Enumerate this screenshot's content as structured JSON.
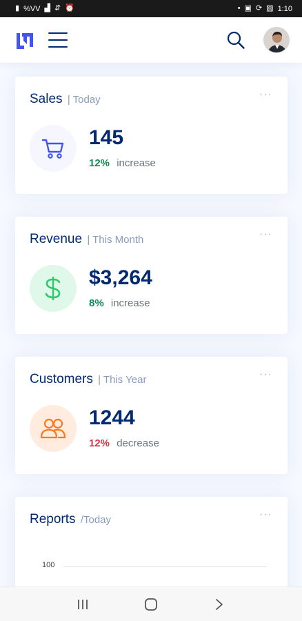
{
  "status_bar": {
    "left_text": "%VV",
    "time": "1:10"
  },
  "cards": [
    {
      "title": "Sales",
      "period": "| Today",
      "value": "145",
      "percent": "12%",
      "direction": "increase",
      "icon": "cart-icon",
      "icon_color": "#4154f1",
      "icon_bg": "#f6f6fe"
    },
    {
      "title": "Revenue",
      "period": "| This Month",
      "value": "$3,264",
      "percent": "8%",
      "direction": "increase",
      "icon": "dollar-icon",
      "icon_color": "#2eca6a",
      "icon_bg": "#e0f8e9"
    },
    {
      "title": "Customers",
      "period": "| This Year",
      "value": "1244",
      "percent": "12%",
      "direction": "decrease",
      "icon": "people-icon",
      "icon_color": "#ff771d",
      "icon_bg": "#ffecdf"
    }
  ],
  "reports": {
    "title": "Reports",
    "period": "/Today",
    "y_tick": "100"
  },
  "card_menu": "···",
  "colors": {
    "brand": "#012970",
    "accent": "#4154f1",
    "increase": "#198754",
    "decrease": "#dc3545"
  }
}
